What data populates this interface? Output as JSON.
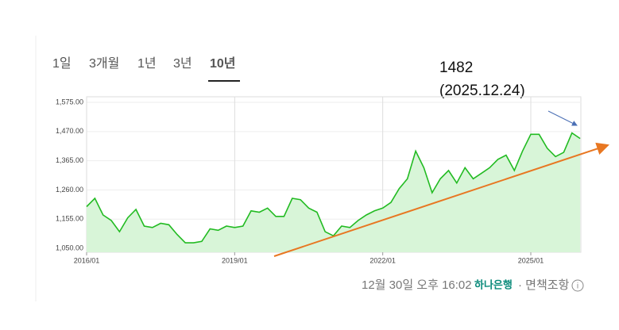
{
  "tabs": [
    "1일",
    "3개월",
    "1년",
    "3년",
    "10년"
  ],
  "annotation": {
    "value_text": "1482",
    "date_text": "(2025.12.24)"
  },
  "footer": {
    "time": "12월 30일 오후 16:02",
    "bank": "하나은행",
    "disclaimer": "· 면책조항"
  },
  "chart_data": {
    "type": "line",
    "categories": [
      "2016/01",
      null,
      null,
      null,
      null,
      null,
      null,
      null,
      null,
      null,
      null,
      null,
      null,
      null,
      null,
      null,
      null,
      null,
      "2019/01",
      null,
      null,
      null,
      null,
      null,
      null,
      null,
      null,
      null,
      null,
      null,
      null,
      null,
      null,
      null,
      null,
      null,
      "2022/01",
      null,
      null,
      null,
      null,
      null,
      null,
      null,
      null,
      null,
      null,
      null,
      null,
      null,
      null,
      null,
      null,
      null,
      "2025/01",
      null,
      null,
      null,
      null,
      null,
      null
    ],
    "series": [
      {
        "color": "#22bb22",
        "values": [
          1200,
          1230,
          1170,
          1150,
          1110,
          1160,
          1190,
          1130,
          1125,
          1140,
          1135,
          1100,
          1070,
          1070,
          1075,
          1120,
          1115,
          1130,
          1125,
          1130,
          1185,
          1180,
          1195,
          1165,
          1165,
          1230,
          1225,
          1195,
          1180,
          1110,
          1095,
          1130,
          1125,
          1150,
          1170,
          1185,
          1195,
          1215,
          1265,
          1300,
          1400,
          1340,
          1250,
          1300,
          1330,
          1285,
          1340,
          1300,
          1320,
          1340,
          1370,
          1385,
          1330,
          1400,
          1460,
          1460,
          1410,
          1380,
          1395,
          1465,
          1445
        ]
      }
    ],
    "ylim": [
      1036,
      1595
    ],
    "yticks": [
      {
        "value": 1050,
        "label": "1,050.00"
      },
      {
        "value": 1155,
        "label": "1,155.00"
      },
      {
        "value": 1260,
        "label": "1,260.00"
      },
      {
        "value": 1365,
        "label": "1,365.00"
      },
      {
        "value": 1470,
        "label": "1,470.00"
      },
      {
        "value": 1575,
        "label": "1,575.00"
      }
    ],
    "grid": true
  }
}
